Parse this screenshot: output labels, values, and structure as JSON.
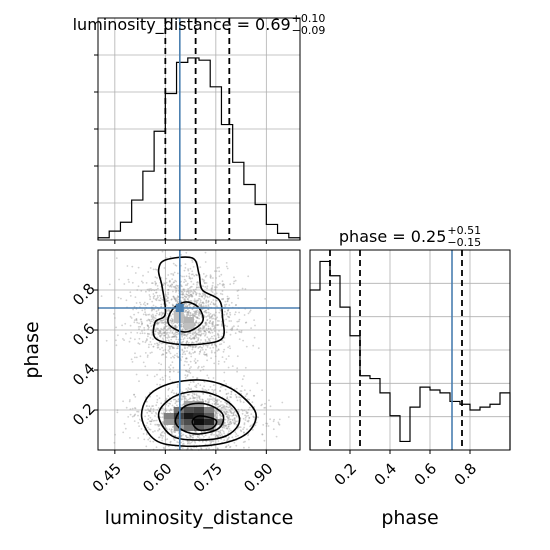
{
  "chart_data": {
    "type": "corner",
    "variables": [
      "luminosity_distance",
      "phase"
    ],
    "colors": {
      "truth": "#4a7fb0",
      "hist": "#000000",
      "scatter": "#9a9a9a",
      "grid": "#b0b0b0"
    },
    "truth": {
      "luminosity_distance": 0.643,
      "phase": 0.71
    },
    "panels": [
      {
        "id": "luminosity_distance-hist",
        "type": "histogram",
        "title_name": "luminosity_distance",
        "title_value": "0.69",
        "title_plus": "+0.10",
        "title_minus": "−0.09",
        "xlim": [
          0.4,
          1.0
        ],
        "quantiles": [
          0.6,
          0.69,
          0.79
        ],
        "bin_edges": [
          0.4,
          0.4333,
          0.4667,
          0.5,
          0.5333,
          0.5667,
          0.6,
          0.6333,
          0.6667,
          0.7,
          0.7333,
          0.7667,
          0.8,
          0.8333,
          0.8667,
          0.9,
          0.9333,
          0.9667,
          1.0
        ],
        "counts": [
          1,
          4,
          8,
          18,
          31,
          49,
          66,
          80,
          82,
          81,
          69,
          52,
          35,
          25,
          16,
          7,
          3,
          1
        ],
        "ylim": [
          0,
          100
        ]
      },
      {
        "id": "phase-hist",
        "type": "histogram",
        "title_name": "phase",
        "title_value": "0.25",
        "title_plus": "+0.51",
        "title_minus": "−0.15",
        "xlim": [
          0.0,
          1.0
        ],
        "quantiles": [
          0.1,
          0.25,
          0.76
        ],
        "bin_edges": [
          0.0,
          0.05,
          0.1,
          0.15,
          0.2,
          0.25,
          0.3,
          0.35,
          0.4,
          0.45,
          0.5,
          0.55,
          0.6,
          0.65,
          0.7,
          0.75,
          0.8,
          0.85,
          0.9,
          0.95,
          1.0
        ],
        "counts": [
          56,
          66,
          61,
          50,
          40,
          26,
          25,
          20,
          12,
          3,
          15,
          22,
          21,
          20,
          17,
          16,
          14,
          15,
          16,
          20
        ],
        "ylim": [
          0,
          70
        ]
      },
      {
        "id": "phase-vs-luminosity_distance",
        "type": "2d-density",
        "xlim": [
          0.4,
          1.0
        ],
        "ylim": [
          0.0,
          1.0
        ],
        "scatter_points": 3000,
        "modes": [
          {
            "x": 0.66,
            "y": 0.66,
            "sx": 0.075,
            "sy": 0.12,
            "weight": 0.55
          },
          {
            "x": 0.7,
            "y": 0.16,
            "sx": 0.085,
            "sy": 0.08,
            "weight": 0.45
          }
        ],
        "contours": [
          {
            "level": "outer",
            "points": [
              [
                0.6,
                0.95
              ],
              [
                0.68,
                0.96
              ],
              [
                0.7,
                0.88
              ],
              [
                0.71,
                0.8
              ],
              [
                0.76,
                0.75
              ],
              [
                0.77,
                0.66
              ],
              [
                0.77,
                0.56
              ],
              [
                0.71,
                0.53
              ],
              [
                0.63,
                0.53
              ],
              [
                0.57,
                0.56
              ],
              [
                0.57,
                0.64
              ],
              [
                0.6,
                0.68
              ],
              [
                0.59,
                0.82
              ],
              [
                0.58,
                0.9
              ]
            ]
          },
          {
            "level": "inner",
            "points": [
              [
                0.66,
                0.74
              ],
              [
                0.7,
                0.71
              ],
              [
                0.71,
                0.64
              ],
              [
                0.66,
                0.59
              ],
              [
                0.61,
                0.63
              ],
              [
                0.62,
                0.7
              ]
            ]
          },
          {
            "level": "outer",
            "points": [
              [
                0.53,
                0.16
              ],
              [
                0.55,
                0.27
              ],
              [
                0.61,
                0.33
              ],
              [
                0.7,
                0.35
              ],
              [
                0.78,
                0.32
              ],
              [
                0.84,
                0.25
              ],
              [
                0.87,
                0.17
              ],
              [
                0.84,
                0.08
              ],
              [
                0.76,
                0.03
              ],
              [
                0.65,
                0.02
              ],
              [
                0.57,
                0.05
              ]
            ]
          },
          {
            "level": "mid",
            "points": [
              [
                0.58,
                0.17
              ],
              [
                0.61,
                0.25
              ],
              [
                0.67,
                0.29
              ],
              [
                0.74,
                0.28
              ],
              [
                0.8,
                0.22
              ],
              [
                0.82,
                0.14
              ],
              [
                0.78,
                0.07
              ],
              [
                0.7,
                0.05
              ],
              [
                0.62,
                0.07
              ]
            ]
          },
          {
            "level": "mid2",
            "points": [
              [
                0.63,
                0.15
              ],
              [
                0.66,
                0.22
              ],
              [
                0.72,
                0.23
              ],
              [
                0.77,
                0.18
              ],
              [
                0.76,
                0.11
              ],
              [
                0.7,
                0.08
              ],
              [
                0.65,
                0.1
              ]
            ]
          },
          {
            "level": "inner",
            "points": [
              [
                0.68,
                0.14
              ],
              [
                0.7,
                0.17
              ],
              [
                0.75,
                0.15
              ],
              [
                0.74,
                0.11
              ],
              [
                0.7,
                0.1
              ]
            ]
          }
        ],
        "density_cells": [
          {
            "x": 0.61,
            "y": 0.17,
            "v": 0.5
          },
          {
            "x": 0.64,
            "y": 0.17,
            "v": 0.75
          },
          {
            "x": 0.67,
            "y": 0.17,
            "v": 0.9
          },
          {
            "x": 0.7,
            "y": 0.17,
            "v": 0.85
          },
          {
            "x": 0.73,
            "y": 0.17,
            "v": 0.65
          },
          {
            "x": 0.64,
            "y": 0.2,
            "v": 0.55
          },
          {
            "x": 0.67,
            "y": 0.2,
            "v": 0.7
          },
          {
            "x": 0.7,
            "y": 0.2,
            "v": 0.75
          },
          {
            "x": 0.73,
            "y": 0.2,
            "v": 0.5
          },
          {
            "x": 0.64,
            "y": 0.14,
            "v": 0.6
          },
          {
            "x": 0.67,
            "y": 0.14,
            "v": 0.7
          },
          {
            "x": 0.7,
            "y": 0.14,
            "v": 0.95
          },
          {
            "x": 0.73,
            "y": 0.14,
            "v": 0.85
          },
          {
            "x": 0.76,
            "y": 0.14,
            "v": 0.45
          },
          {
            "x": 0.64,
            "y": 0.11,
            "v": 0.4
          },
          {
            "x": 0.67,
            "y": 0.11,
            "v": 0.55
          },
          {
            "x": 0.7,
            "y": 0.11,
            "v": 0.65
          },
          {
            "x": 0.73,
            "y": 0.11,
            "v": 0.55
          },
          {
            "x": 0.61,
            "y": 0.14,
            "v": 0.4
          },
          {
            "x": 0.67,
            "y": 0.23,
            "v": 0.35
          },
          {
            "x": 0.7,
            "y": 0.23,
            "v": 0.35
          },
          {
            "x": 0.64,
            "y": 0.65,
            "v": 0.25
          },
          {
            "x": 0.67,
            "y": 0.65,
            "v": 0.3
          },
          {
            "x": 0.64,
            "y": 0.68,
            "v": 0.25
          },
          {
            "x": 0.67,
            "y": 0.62,
            "v": 0.25
          }
        ],
        "density_cell_size": [
          0.03,
          0.03
        ]
      }
    ],
    "axes": {
      "luminosity_distance": {
        "label": "luminosity_distance",
        "ticks": [
          0.45,
          0.6,
          0.75,
          0.9
        ],
        "tick_labels": [
          "0.45",
          "0.60",
          "0.75",
          "0.90"
        ]
      },
      "phase_x": {
        "label": "phase",
        "ticks": [
          0.2,
          0.4,
          0.6,
          0.8
        ],
        "tick_labels": [
          "0.2",
          "0.4",
          "0.6",
          "0.8"
        ]
      },
      "phase_y": {
        "label": "phase",
        "ticks": [
          0.2,
          0.4,
          0.6,
          0.8
        ],
        "tick_labels": [
          "0.2",
          "0.4",
          "0.6",
          "0.8"
        ]
      }
    },
    "grid": true
  }
}
